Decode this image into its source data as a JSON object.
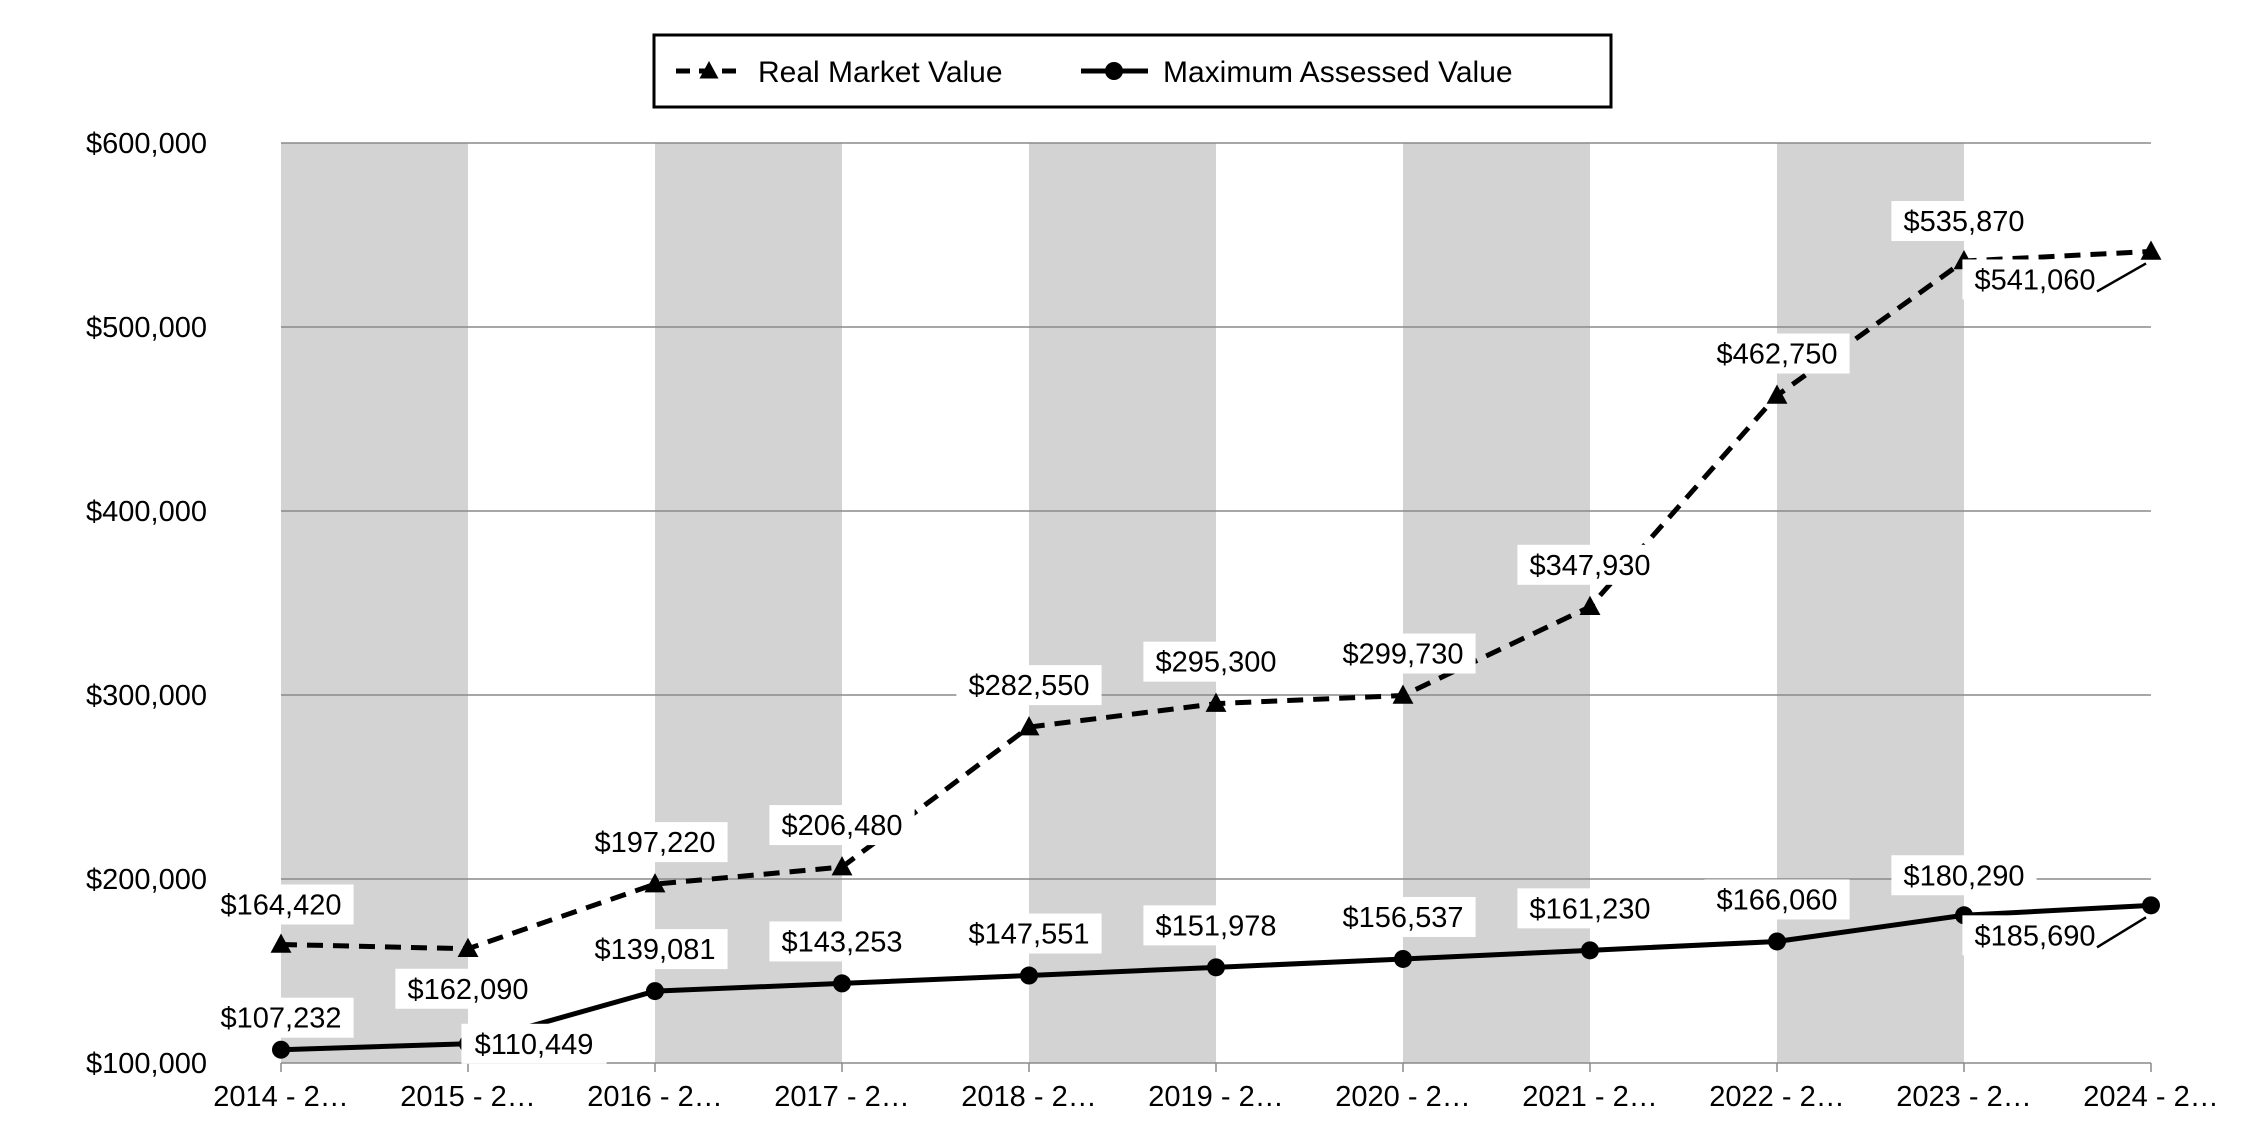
{
  "chart_data": {
    "type": "line",
    "title": "",
    "xlabel": "",
    "ylabel": "",
    "categories": [
      "2014 - 2…",
      "2015 - 2…",
      "2016 - 2…",
      "2017 - 2…",
      "2018 - 2…",
      "2019 - 2…",
      "2020 - 2…",
      "2021 - 2…",
      "2022 - 2…",
      "2023 - 2…",
      "2024 - 2…"
    ],
    "ylim": [
      100000,
      600000
    ],
    "yticks": [
      100000,
      200000,
      300000,
      400000,
      500000,
      600000
    ],
    "ytick_labels": [
      "$100,000",
      "$200,000",
      "$300,000",
      "$400,000",
      "$500,000",
      "$600,000"
    ],
    "grid": true,
    "legend_position": "top-center",
    "series": [
      {
        "name": "Real Market Value",
        "style": "dashed",
        "marker": "triangle",
        "values": [
          164420,
          162090,
          197220,
          206480,
          282550,
          295300,
          299730,
          347930,
          462750,
          535870,
          541060
        ],
        "labels": [
          "$164,420",
          "$162,090",
          "$197,220",
          "$206,480",
          "$282,550",
          "$295,300",
          "$299,730",
          "$347,930",
          "$462,750",
          "$535,870",
          "$541,060"
        ]
      },
      {
        "name": "Maximum Assessed Value",
        "style": "solid",
        "marker": "circle",
        "values": [
          107232,
          110449,
          139081,
          143253,
          147551,
          151978,
          156537,
          161230,
          166060,
          180290,
          185690
        ],
        "labels": [
          "$107,232",
          "$110,449",
          "$139,081",
          "$143,253",
          "$147,551",
          "$151,978",
          "$156,537",
          "$161,230",
          "$166,060",
          "$180,290",
          "$185,690"
        ]
      }
    ],
    "colors": {
      "band": "#d3d3d3",
      "grid": "#8a8a8a",
      "line": "#000000"
    }
  }
}
